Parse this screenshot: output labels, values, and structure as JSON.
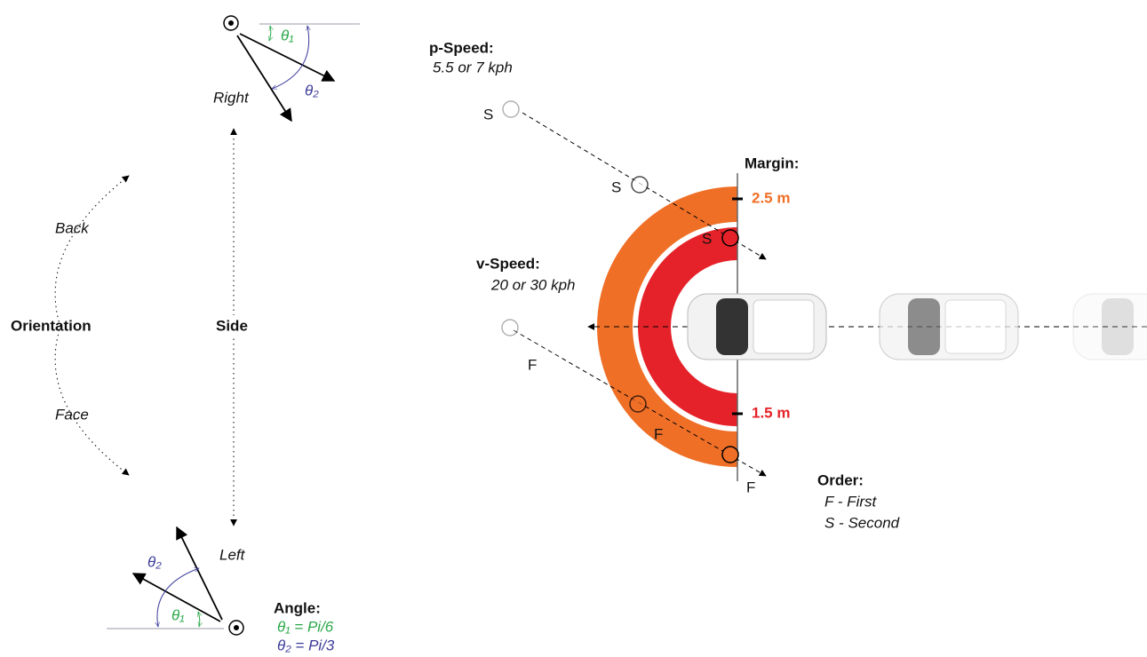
{
  "orientation": {
    "label": "Orientation",
    "back": "Back",
    "face": "Face"
  },
  "side": {
    "label": "Side",
    "right": "Right",
    "left": "Left"
  },
  "angle_top": {
    "theta1": "θ₁",
    "theta2": "θ₂"
  },
  "angle_bottom": {
    "theta1": "θ₁",
    "theta2": "θ₂"
  },
  "angle_legend": {
    "title": "Angle:",
    "theta1": "θ₁ = Pi/6",
    "theta2": "θ₂ = Pi/3"
  },
  "p_speed": {
    "title": "p-Speed:",
    "value": "5.5 or 7 kph"
  },
  "v_speed": {
    "title": "v-Speed:",
    "value": "20 or 30 kph"
  },
  "margin": {
    "title": "Margin:",
    "outer": "2.5 m",
    "inner": "1.5 m"
  },
  "order": {
    "title": "Order:",
    "first": "F - First",
    "second": "S - Second"
  },
  "pedestrian_labels": {
    "second": [
      "S",
      "S",
      "S"
    ],
    "first": [
      "F",
      "F",
      "F"
    ]
  }
}
